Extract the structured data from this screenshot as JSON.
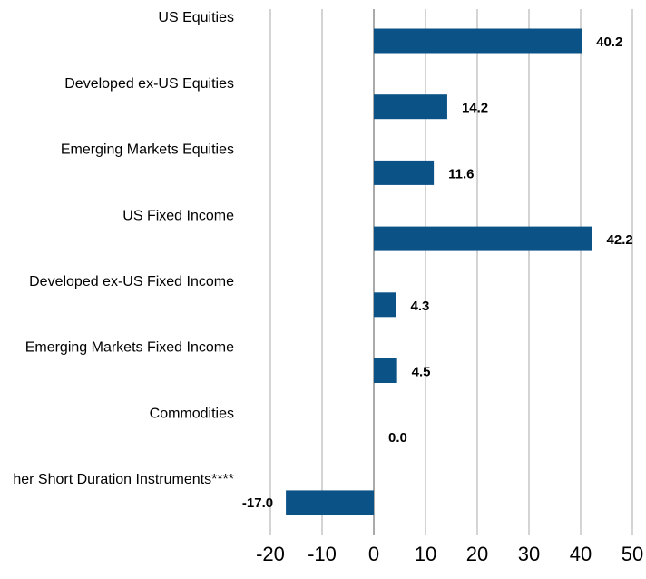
{
  "chart_data": {
    "type": "hbar",
    "categories": [
      "US Equities",
      "Developed ex-US Equities",
      "Emerging Markets Equities",
      "US Fixed Income",
      "Developed ex-US Fixed Income",
      "Emerging Markets Fixed Income",
      "Commodities",
      "her Short Duration Instruments****"
    ],
    "values": [
      40.2,
      14.2,
      11.6,
      42.2,
      4.3,
      4.5,
      0.0,
      -17.0
    ],
    "value_labels": [
      "40.2",
      "14.2",
      "11.6",
      "42.2",
      "4.3",
      "4.5",
      "0.0",
      "-17.0"
    ],
    "color": "#0b5287",
    "xlim": [
      -20,
      50
    ],
    "xticks": [
      -20,
      -10,
      0,
      10,
      20,
      30,
      40,
      50
    ],
    "grid": true
  }
}
